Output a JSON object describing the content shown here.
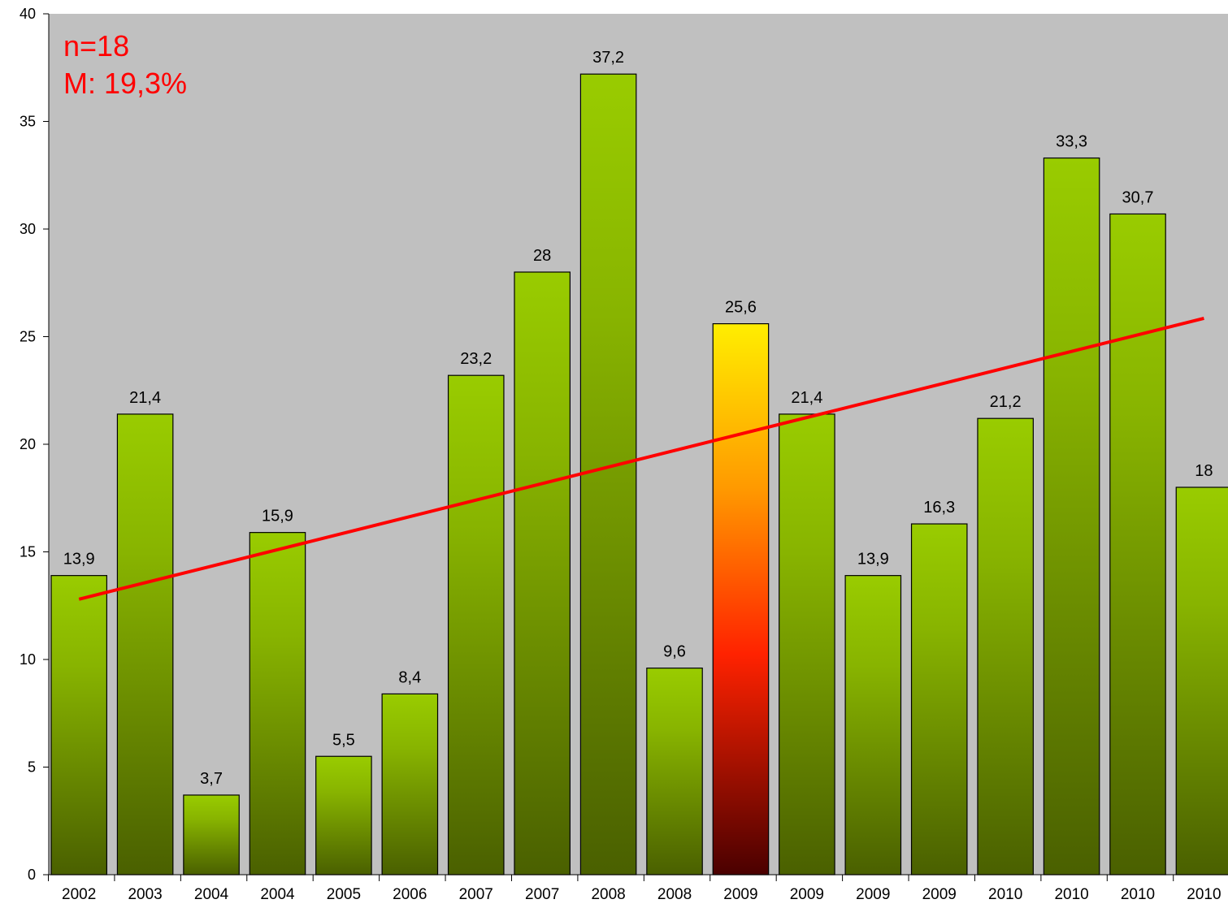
{
  "chart_data": {
    "type": "bar",
    "categories": [
      "2002",
      "2003",
      "2004",
      "2004",
      "2005",
      "2006",
      "2007",
      "2007",
      "2008",
      "2008",
      "2009",
      "2009",
      "2009",
      "2009",
      "2010",
      "2010",
      "2010",
      "2010"
    ],
    "values": [
      13.9,
      21.4,
      3.7,
      15.9,
      5.5,
      8.4,
      23.2,
      28,
      37.2,
      9.6,
      25.6,
      21.4,
      13.9,
      16.3,
      21.2,
      33.3,
      30.7,
      18
    ],
    "value_labels": [
      "13,9",
      "21,4",
      "3,7",
      "15,9",
      "5,5",
      "8,4",
      "23,2",
      "28",
      "37,2",
      "9,6",
      "25,6",
      "21,4",
      "13,9",
      "16,3",
      "21,2",
      "33,3",
      "30,7",
      "18"
    ],
    "highlight_index": 10,
    "ylim": [
      0,
      40
    ],
    "yticks": [
      0,
      5,
      10,
      15,
      20,
      25,
      30,
      35,
      40
    ],
    "grid": false,
    "trendline": {
      "type": "linear",
      "start": 12.8,
      "end": 25.85
    },
    "annotations": {
      "n": "n=18",
      "mean": "M: 19,3%"
    },
    "colors": {
      "plot_background": "#c0c0c0",
      "bar_top": "#99cc00",
      "bar_bottom": "#4a6000",
      "highlight_top": "#ffee00",
      "highlight_mid": "#ff2200",
      "highlight_bottom": "#4a0000",
      "trendline": "#ff0000",
      "annotation": "#ff0000"
    }
  }
}
